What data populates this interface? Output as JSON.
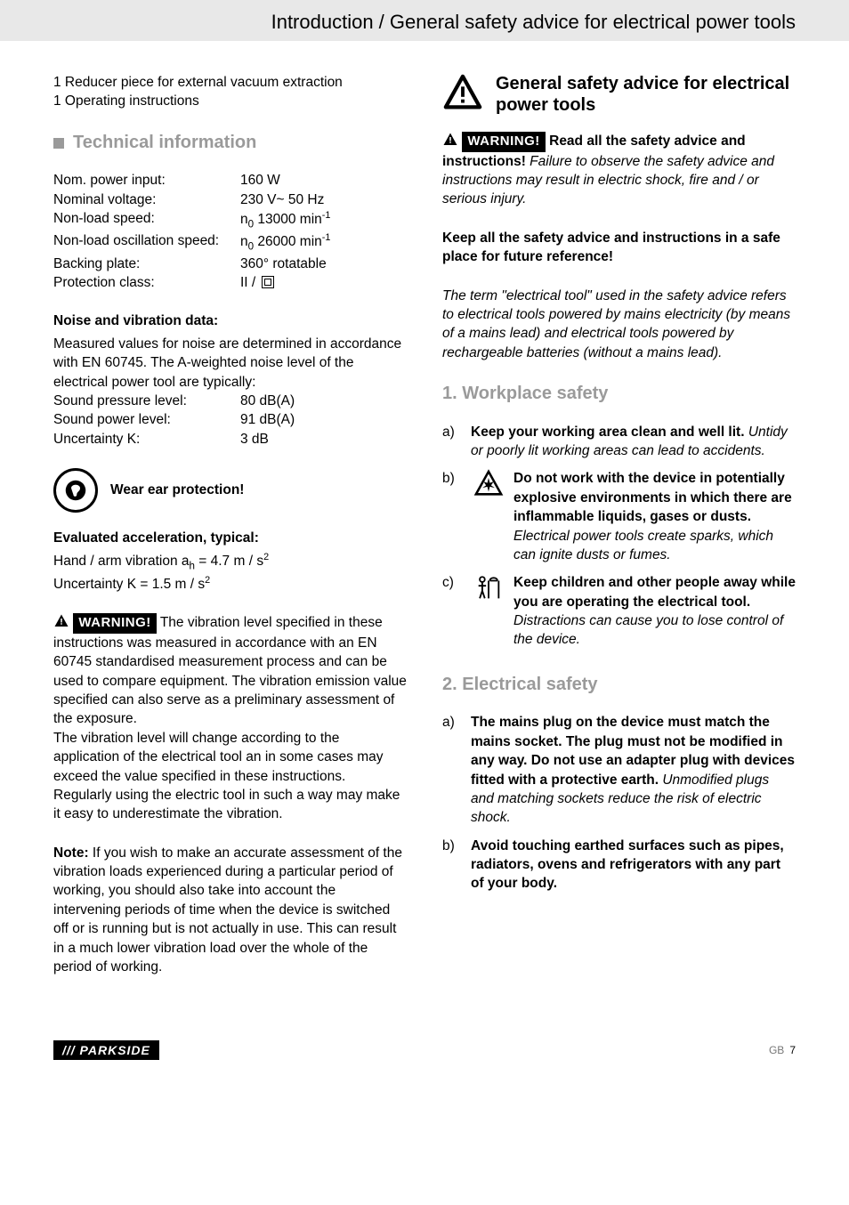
{
  "header": {
    "title": "Introduction / General safety advice for electrical power tools"
  },
  "left": {
    "pre_items": [
      "1 Reducer piece for external vacuum extraction",
      "1 Operating instructions"
    ],
    "tech_title": "Technical information",
    "specs": [
      {
        "label": "Nom. power input:",
        "value": "160 W"
      },
      {
        "label": "Nominal voltage:",
        "value": "230 V~ 50 Hz"
      },
      {
        "label": "Non-load speed:",
        "value_html": "n<sub>0</sub> 13000 min<sup>-1</sup>"
      },
      {
        "label": "Non-load oscillation speed:",
        "value_html": "n<sub>0</sub> 26000 min<sup>-1</sup>"
      },
      {
        "label": "Backing plate:",
        "value": "360° rotatable"
      },
      {
        "label": "Protection class:",
        "value_html": "II / <span class=\"double-insul\"></span>"
      }
    ],
    "noise_head": "Noise and vibration data:",
    "noise_intro": "Measured values for noise are determined in accordance with EN 60745. The A-weighted noise level of the electrical power tool are typically:",
    "noise_rows": [
      {
        "label": "Sound pressure level:",
        "value": "80 dB(A)"
      },
      {
        "label": "Sound power level:",
        "value": "91 dB(A)"
      },
      {
        "label": "Uncertainty K:",
        "value": "3 dB"
      }
    ],
    "ear": "Wear ear protection!",
    "accel_head": "Evaluated acceleration, typical:",
    "accel_l1_html": "Hand / arm vibration a<sub>h</sub> = 4.7 m / s<sup>2</sup>",
    "accel_l2_html": "Uncertainty K = 1.5 m / s<sup>2</sup>",
    "warn_label": "WARNING!",
    "warn_p1": " The vibration level specified in these instructions was measured in accordance with an EN 60745 standardised measurement process and can be used to compare equipment. The vibration emission value specified can also serve as a preliminary assessment of the exposure.",
    "warn_p2": "The vibration level will change according to the application of the electrical tool an in some cases may exceed the value specified in these instructions. Regularly using the electric tool in such a way may make it easy to underestimate the vibration.",
    "note_label": "Note:",
    "note_body": " If you wish to make an accurate assessment of the vibration loads experienced during a particular period of working, you should also take into account the intervening periods of time when the device is switched off or is running but is not actually in use. This can result in a much lower vibration load over the whole of the period of working."
  },
  "right": {
    "main_title": "General safety advice for electrical power tools",
    "warn_label": "WARNING!",
    "warn_head": " Read all the safety advice and instructions!",
    "warn_body": " Failure to observe the safety advice and instructions may result in electric shock, fire and / or serious injury.",
    "keep": "Keep all the safety advice and instructions in a safe place for future reference!",
    "term": "The term \"electrical tool\" used in the safety advice refers to electrical tools powered by mains electricity (by means of a mains lead) and electrical tools powered by rechargeable batteries (without a mains lead).",
    "s1_title": "1.  Workplace safety",
    "s1_items": {
      "a_bold": "Keep your working area clean and well lit.",
      "a_it": " Untidy or poorly lit working areas can lead to accidents.",
      "b_bold": "Do not work with the device in potentially explosive environments in which there are inflammable liquids, gases or dusts.",
      "b_it": "Electrical power tools create sparks, which can ignite dusts or fumes.",
      "c_bold": "Keep children and other people away while you are operating the electrical tool.",
      "c_it": "Distractions can cause you to lose control of the device."
    },
    "s2_title": "2.  Electrical safety",
    "s2_items": {
      "a_bold": "The mains plug on the device must match the mains socket. The plug must not be modified in any way. Do not use an adapter plug with devices fitted with a protective earth.",
      "a_it": " Unmodified plugs and matching sockets reduce the risk of electric shock.",
      "b_bold": "Avoid touching earthed surfaces such as pipes, radiators, ovens and refrigerators with any part of your body."
    }
  },
  "footer": {
    "brand": "/// PARKSIDE",
    "region": "GB",
    "page": "7"
  }
}
